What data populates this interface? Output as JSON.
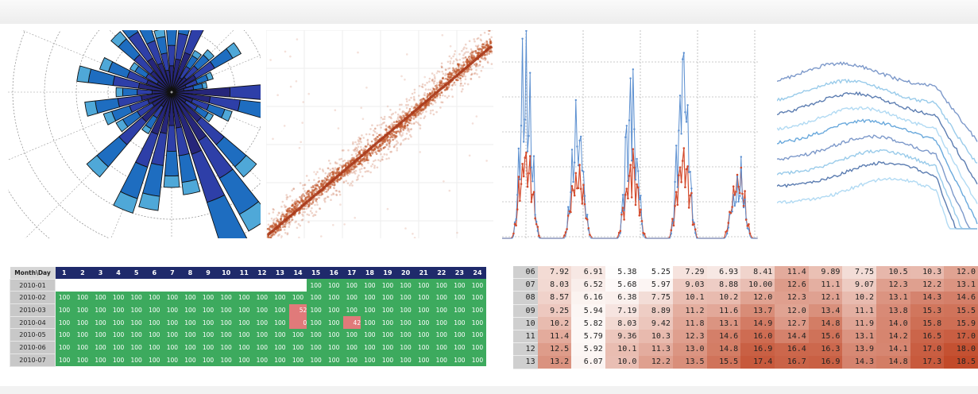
{
  "charts": {
    "wind_rose": {
      "type": "bar",
      "subtype": "polar-stacked",
      "colors": [
        "#26267a",
        "#2e3fa8",
        "#1e6dc0",
        "#4fa8d8"
      ],
      "grid": true
    },
    "scatter": {
      "type": "scatter",
      "color": "#c0552a",
      "grid": true
    },
    "timeseries": {
      "type": "line",
      "series_colors": [
        "#5b8fd0",
        "#d34a2c"
      ],
      "grid": true
    },
    "profiles": {
      "type": "line",
      "series_colors": [
        "#6f8ec4",
        "#8ec5e8",
        "#4a6fa8",
        "#a9d6f2",
        "#5aa0d8"
      ],
      "grid": false
    }
  },
  "chart_data": [
    {
      "type": "table",
      "name": "availability",
      "corner": "Month\\Day",
      "columns": [
        "1",
        "2",
        "3",
        "4",
        "5",
        "6",
        "7",
        "8",
        "9",
        "10",
        "11",
        "12",
        "13",
        "14",
        "15",
        "16",
        "17",
        "18",
        "19",
        "20",
        "21",
        "22",
        "23",
        "24"
      ],
      "rows": [
        {
          "label": "2010-01",
          "values": [
            null,
            null,
            null,
            null,
            null,
            null,
            null,
            null,
            null,
            null,
            null,
            null,
            null,
            null,
            "100",
            "100",
            "100",
            "100",
            "100",
            "100",
            "100",
            "100",
            "100",
            "100"
          ]
        },
        {
          "label": "2010-02",
          "values": [
            "100",
            "100",
            "100",
            "100",
            "100",
            "100",
            "100",
            "100",
            "100",
            "100",
            "100",
            "100",
            "100",
            "100",
            "100",
            "100",
            "100",
            "100",
            "100",
            "100",
            "100",
            "100",
            "100",
            "100"
          ]
        },
        {
          "label": "2010-03",
          "values": [
            "100",
            "100",
            "100",
            "100",
            "100",
            "100",
            "100",
            "100",
            "100",
            "100",
            "100",
            "100",
            "100",
            "52",
            "100",
            "100",
            "100",
            "100",
            "100",
            "100",
            "100",
            "100",
            "100",
            "100"
          ]
        },
        {
          "label": "2010-04",
          "values": [
            "100",
            "100",
            "100",
            "100",
            "100",
            "100",
            "100",
            "100",
            "100",
            "100",
            "100",
            "100",
            "100",
            "0",
            "100",
            "100",
            "42",
            "100",
            "100",
            "100",
            "100",
            "100",
            "100",
            "100"
          ]
        },
        {
          "label": "2010-05",
          "values": [
            "100",
            "100",
            "100",
            "100",
            "100",
            "100",
            "100",
            "100",
            "100",
            "100",
            "100",
            "100",
            "100",
            "100",
            "100",
            "100",
            "100",
            "100",
            "100",
            "100",
            "100",
            "100",
            "100",
            "100"
          ]
        },
        {
          "label": "2010-06",
          "values": [
            "100",
            "100",
            "100",
            "100",
            "100",
            "100",
            "100",
            "100",
            "100",
            "100",
            "100",
            "100",
            "100",
            "100",
            "100",
            "100",
            "100",
            "100",
            "100",
            "100",
            "100",
            "100",
            "100",
            "100"
          ]
        },
        {
          "label": "2010-07",
          "values": [
            "100",
            "100",
            "100",
            "100",
            "100",
            "100",
            "100",
            "100",
            "100",
            "100",
            "100",
            "100",
            "100",
            "100",
            "100",
            "100",
            "100",
            "100",
            "100",
            "100",
            "100",
            "100",
            "100",
            "100"
          ]
        }
      ],
      "colors": {
        "full": "#3daa5e",
        "partial": "#e07a7a",
        "header": "#1f2a6b"
      }
    },
    {
      "type": "heatmap",
      "name": "values",
      "colors": {
        "low": "#ffffff",
        "high": "#c24a2a"
      },
      "rows": [
        {
          "label": "06",
          "values": [
            "7.92",
            "6.91",
            "5.38",
            "5.25",
            "7.29",
            "6.93",
            "8.41",
            "11.4",
            "9.89",
            "7.75",
            "10.5",
            "10.3",
            "12.0"
          ]
        },
        {
          "label": "07",
          "values": [
            "8.03",
            "6.52",
            "5.68",
            "5.97",
            "9.03",
            "8.88",
            "10.00",
            "12.6",
            "11.1",
            "9.07",
            "12.3",
            "12.2",
            "13.1"
          ]
        },
        {
          "label": "08",
          "values": [
            "8.57",
            "6.16",
            "6.38",
            "7.75",
            "10.1",
            "10.2",
            "12.0",
            "12.3",
            "12.1",
            "10.2",
            "13.1",
            "14.3",
            "14.6"
          ]
        },
        {
          "label": "09",
          "values": [
            "9.25",
            "5.94",
            "7.19",
            "8.89",
            "11.2",
            "11.6",
            "13.7",
            "12.0",
            "13.4",
            "11.1",
            "13.8",
            "15.3",
            "15.5"
          ]
        },
        {
          "label": "10",
          "values": [
            "10.2",
            "5.82",
            "8.03",
            "9.42",
            "11.8",
            "13.1",
            "14.9",
            "12.7",
            "14.8",
            "11.9",
            "14.0",
            "15.8",
            "15.9"
          ]
        },
        {
          "label": "11",
          "values": [
            "11.4",
            "5.79",
            "9.36",
            "10.3",
            "12.3",
            "14.6",
            "16.0",
            "14.4",
            "15.6",
            "13.1",
            "14.2",
            "16.5",
            "17.0"
          ]
        },
        {
          "label": "12",
          "values": [
            "12.5",
            "5.92",
            "10.1",
            "11.3",
            "13.0",
            "14.8",
            "16.9",
            "16.4",
            "16.3",
            "13.9",
            "14.1",
            "17.0",
            "18.0"
          ]
        },
        {
          "label": "13",
          "values": [
            "13.2",
            "6.07",
            "10.0",
            "12.2",
            "13.5",
            "15.5",
            "17.4",
            "16.7",
            "16.9",
            "14.3",
            "14.8",
            "17.3",
            "18.5"
          ]
        }
      ]
    }
  ]
}
